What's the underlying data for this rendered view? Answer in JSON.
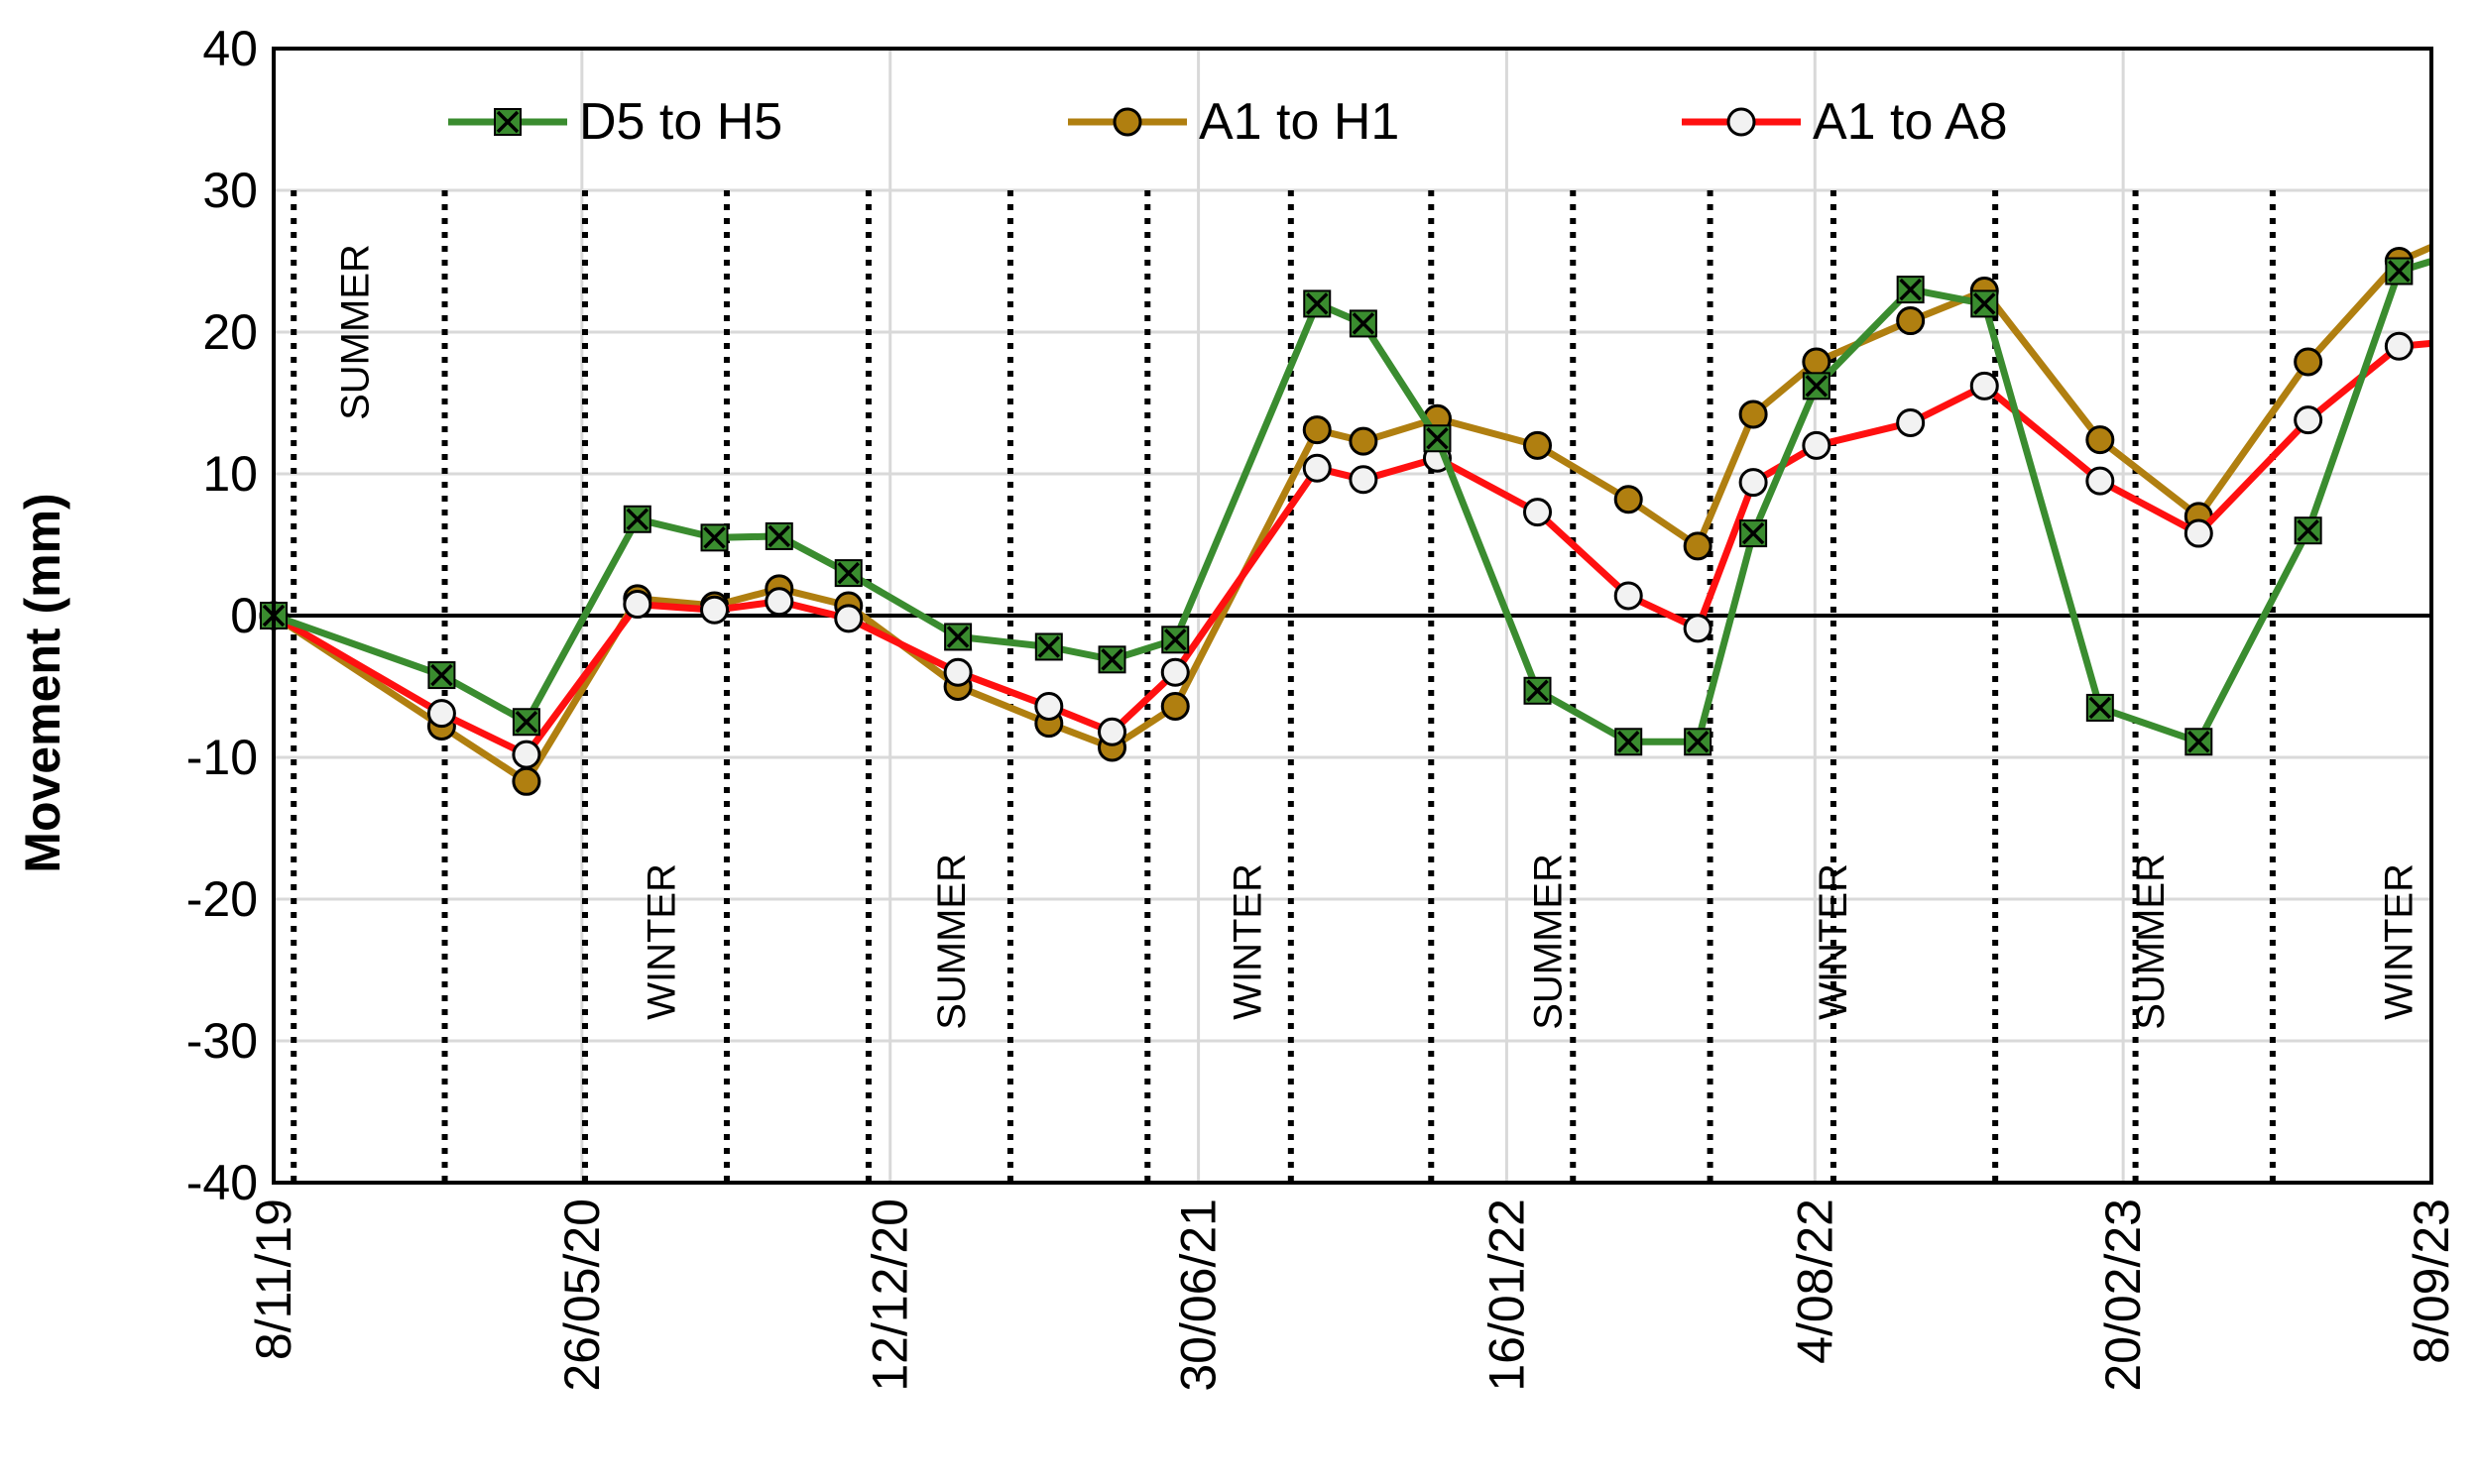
{
  "chart_data": {
    "type": "line",
    "title": "",
    "xlabel": "",
    "ylabel": "Movement (mm)",
    "ylim": [
      -40,
      40
    ],
    "yticks": [
      40,
      30,
      20,
      10,
      0,
      -10,
      -20,
      -30,
      -40
    ],
    "xlim": [
      "2019-11-08",
      "2023-09-08"
    ],
    "x_tick_labels": [
      {
        "date": "2019-11-08",
        "label": "8/11/19"
      },
      {
        "date": "2020-05-26",
        "label": "26/05/20"
      },
      {
        "date": "2020-12-12",
        "label": "12/12/20"
      },
      {
        "date": "2021-06-30",
        "label": "30/06/21"
      },
      {
        "date": "2022-01-16",
        "label": "16/01/22"
      },
      {
        "date": "2022-08-04",
        "label": "4/08/22"
      },
      {
        "date": "2023-02-20",
        "label": "20/02/23"
      },
      {
        "date": "2023-09-08",
        "label": "8/09/23"
      }
    ],
    "grid": true,
    "legend_position": "top",
    "season_lines": [
      "2019-11-21",
      "2020-02-27",
      "2020-05-28",
      "2020-08-28",
      "2020-11-28",
      "2021-02-28",
      "2021-05-28",
      "2021-08-29",
      "2021-11-28",
      "2022-02-28",
      "2022-05-28",
      "2022-08-16",
      "2022-11-29",
      "2023-02-28",
      "2023-05-28"
    ],
    "season_labels": [
      {
        "text": "SUMMER",
        "date": "2019-12-31",
        "y": 20
      },
      {
        "text": "WINTER",
        "date": "2020-07-17",
        "y": -23
      },
      {
        "text": "SUMMER",
        "date": "2021-01-21",
        "y": -23
      },
      {
        "text": "WINTER",
        "date": "2021-08-01",
        "y": -23
      },
      {
        "text": "SUMMER",
        "date": "2022-02-12",
        "y": -23
      },
      {
        "text": "WINTER",
        "date": "2022-08-16",
        "y": -23
      },
      {
        "text": "SUMMER",
        "date": "2023-03-10",
        "y": -23
      },
      {
        "text": "WINTER",
        "date": "2023-08-18",
        "y": -23
      }
    ],
    "series": [
      {
        "name": "D5 to H5",
        "color": "#3a8c2f",
        "marker": "x-square",
        "points": [
          {
            "x": "2019-11-08",
            "y": 0
          },
          {
            "x": "2020-02-25",
            "y": -4.2
          },
          {
            "x": "2020-04-20",
            "y": -7.5
          },
          {
            "x": "2020-07-01",
            "y": 6.8
          },
          {
            "x": "2020-08-20",
            "y": 5.5
          },
          {
            "x": "2020-10-01",
            "y": 5.6
          },
          {
            "x": "2020-11-15",
            "y": 3
          },
          {
            "x": "2021-01-25",
            "y": -1.5
          },
          {
            "x": "2021-03-25",
            "y": -2.2
          },
          {
            "x": "2021-05-05",
            "y": -3.1
          },
          {
            "x": "2021-06-15",
            "y": -1.7
          },
          {
            "x": "2021-09-15",
            "y": 22
          },
          {
            "x": "2021-10-15",
            "y": 20.6
          },
          {
            "x": "2021-12-02",
            "y": 12.5
          },
          {
            "x": "2022-02-05",
            "y": -5.3
          },
          {
            "x": "2022-04-05",
            "y": -8.9
          },
          {
            "x": "2022-05-20",
            "y": -8.9
          },
          {
            "x": "2022-06-25",
            "y": 5.8
          },
          {
            "x": "2022-08-05",
            "y": 16.2
          },
          {
            "x": "2022-10-05",
            "y": 23
          },
          {
            "x": "2022-11-22",
            "y": 22
          },
          {
            "x": "2023-02-05",
            "y": -6.5
          },
          {
            "x": "2023-04-10",
            "y": -8.9
          },
          {
            "x": "2023-06-20",
            "y": 6
          },
          {
            "x": "2023-08-18",
            "y": 24.3
          },
          {
            "x": "2023-09-08",
            "y": 25
          }
        ]
      },
      {
        "name": "A1 to H1",
        "color": "#b07f10",
        "marker": "circle-filled",
        "points": [
          {
            "x": "2019-11-08",
            "y": 0
          },
          {
            "x": "2020-02-25",
            "y": -7.8
          },
          {
            "x": "2020-04-20",
            "y": -11.7
          },
          {
            "x": "2020-07-01",
            "y": 1.2
          },
          {
            "x": "2020-08-20",
            "y": 0.7
          },
          {
            "x": "2020-10-01",
            "y": 1.9
          },
          {
            "x": "2020-11-15",
            "y": 0.7
          },
          {
            "x": "2021-01-25",
            "y": -5
          },
          {
            "x": "2021-03-25",
            "y": -7.6
          },
          {
            "x": "2021-05-05",
            "y": -9.3
          },
          {
            "x": "2021-06-15",
            "y": -6.4
          },
          {
            "x": "2021-09-15",
            "y": 13.1
          },
          {
            "x": "2021-10-15",
            "y": 12.3
          },
          {
            "x": "2021-12-02",
            "y": 13.9
          },
          {
            "x": "2022-02-05",
            "y": 12
          },
          {
            "x": "2022-04-05",
            "y": 8.2
          },
          {
            "x": "2022-05-20",
            "y": 4.9
          },
          {
            "x": "2022-06-25",
            "y": 14.2
          },
          {
            "x": "2022-08-05",
            "y": 17.9
          },
          {
            "x": "2022-10-05",
            "y": 20.8
          },
          {
            "x": "2022-11-22",
            "y": 22.9
          },
          {
            "x": "2023-02-05",
            "y": 12.4
          },
          {
            "x": "2023-04-10",
            "y": 7
          },
          {
            "x": "2023-06-20",
            "y": 17.9
          },
          {
            "x": "2023-08-18",
            "y": 25
          },
          {
            "x": "2023-09-08",
            "y": 26
          }
        ]
      },
      {
        "name": "A1 to A8",
        "color": "#ff1010",
        "marker": "circle-open",
        "points": [
          {
            "x": "2019-11-08",
            "y": 0
          },
          {
            "x": "2020-02-25",
            "y": -6.9
          },
          {
            "x": "2020-04-20",
            "y": -9.8
          },
          {
            "x": "2020-07-01",
            "y": 0.8
          },
          {
            "x": "2020-08-20",
            "y": 0.4
          },
          {
            "x": "2020-10-01",
            "y": 1
          },
          {
            "x": "2020-11-15",
            "y": -0.2
          },
          {
            "x": "2021-01-25",
            "y": -4
          },
          {
            "x": "2021-03-25",
            "y": -6.4
          },
          {
            "x": "2021-05-05",
            "y": -8.2
          },
          {
            "x": "2021-06-15",
            "y": -4
          },
          {
            "x": "2021-09-15",
            "y": 10.4
          },
          {
            "x": "2021-10-15",
            "y": 9.6
          },
          {
            "x": "2021-12-02",
            "y": 11.1
          },
          {
            "x": "2022-02-05",
            "y": 7.3
          },
          {
            "x": "2022-04-05",
            "y": 1.4
          },
          {
            "x": "2022-05-20",
            "y": -0.9
          },
          {
            "x": "2022-06-25",
            "y": 9.4
          },
          {
            "x": "2022-08-05",
            "y": 12
          },
          {
            "x": "2022-10-05",
            "y": 13.6
          },
          {
            "x": "2022-11-22",
            "y": 16.2
          },
          {
            "x": "2023-02-05",
            "y": 9.5
          },
          {
            "x": "2023-04-10",
            "y": 5.8
          },
          {
            "x": "2023-06-20",
            "y": 13.8
          },
          {
            "x": "2023-08-18",
            "y": 19
          },
          {
            "x": "2023-09-08",
            "y": 19.2
          }
        ]
      }
    ]
  }
}
